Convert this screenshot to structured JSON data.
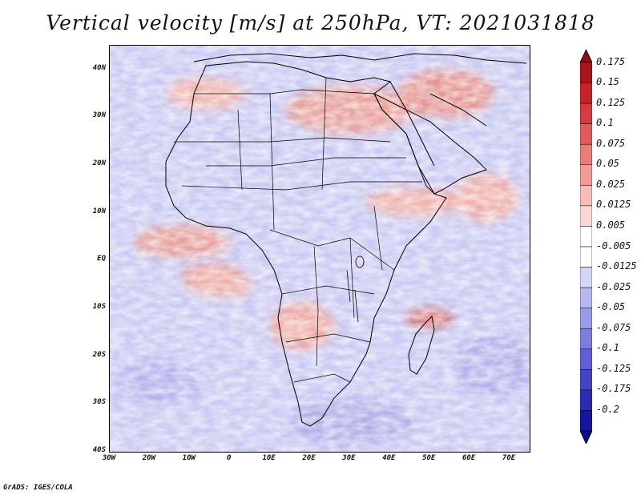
{
  "title": "Vertical velocity [m/s] at 250hPa, VT: 2021031818",
  "credit": "GrADS: IGES/COLA",
  "map": {
    "lon_range": [
      -30,
      75
    ],
    "lat_range": [
      -40,
      45
    ],
    "lat_labels": [
      "40N",
      "30N",
      "20N",
      "10N",
      "EQ",
      "10S",
      "20S",
      "30S",
      "40S"
    ],
    "lat_values": [
      40,
      30,
      20,
      10,
      0,
      -10,
      -20,
      -30,
      -40
    ],
    "lon_labels": [
      "30W",
      "20W",
      "10W",
      "0",
      "10E",
      "20E",
      "30E",
      "40E",
      "50E",
      "60E",
      "70E"
    ],
    "lon_values": [
      -30,
      -20,
      -10,
      0,
      10,
      20,
      30,
      40,
      50,
      60,
      70
    ]
  },
  "colorbar": {
    "levels": [
      "0.175",
      "0.15",
      "0.125",
      "0.1",
      "0.075",
      "0.05",
      "0.025",
      "0.0125",
      "0.005",
      "-0.005",
      "-0.0125",
      "-0.025",
      "-0.05",
      "-0.075",
      "-0.1",
      "-0.125",
      "-0.175",
      "-0.2"
    ],
    "colors": [
      "#a8161c",
      "#c42328",
      "#d33b3e",
      "#e05c5c",
      "#e87c7a",
      "#f09c98",
      "#f6bcb8",
      "#fad8d5",
      "#ffffff",
      "#ffffff",
      "#d5d5f6",
      "#b8b8ef",
      "#9a9ae6",
      "#7d7ddd",
      "#5f5fd2",
      "#4343c4",
      "#2a2ab2",
      "#16169a"
    ],
    "top_cap_color": "#8b0f14",
    "bottom_cap_color": "#0c0c86"
  }
}
